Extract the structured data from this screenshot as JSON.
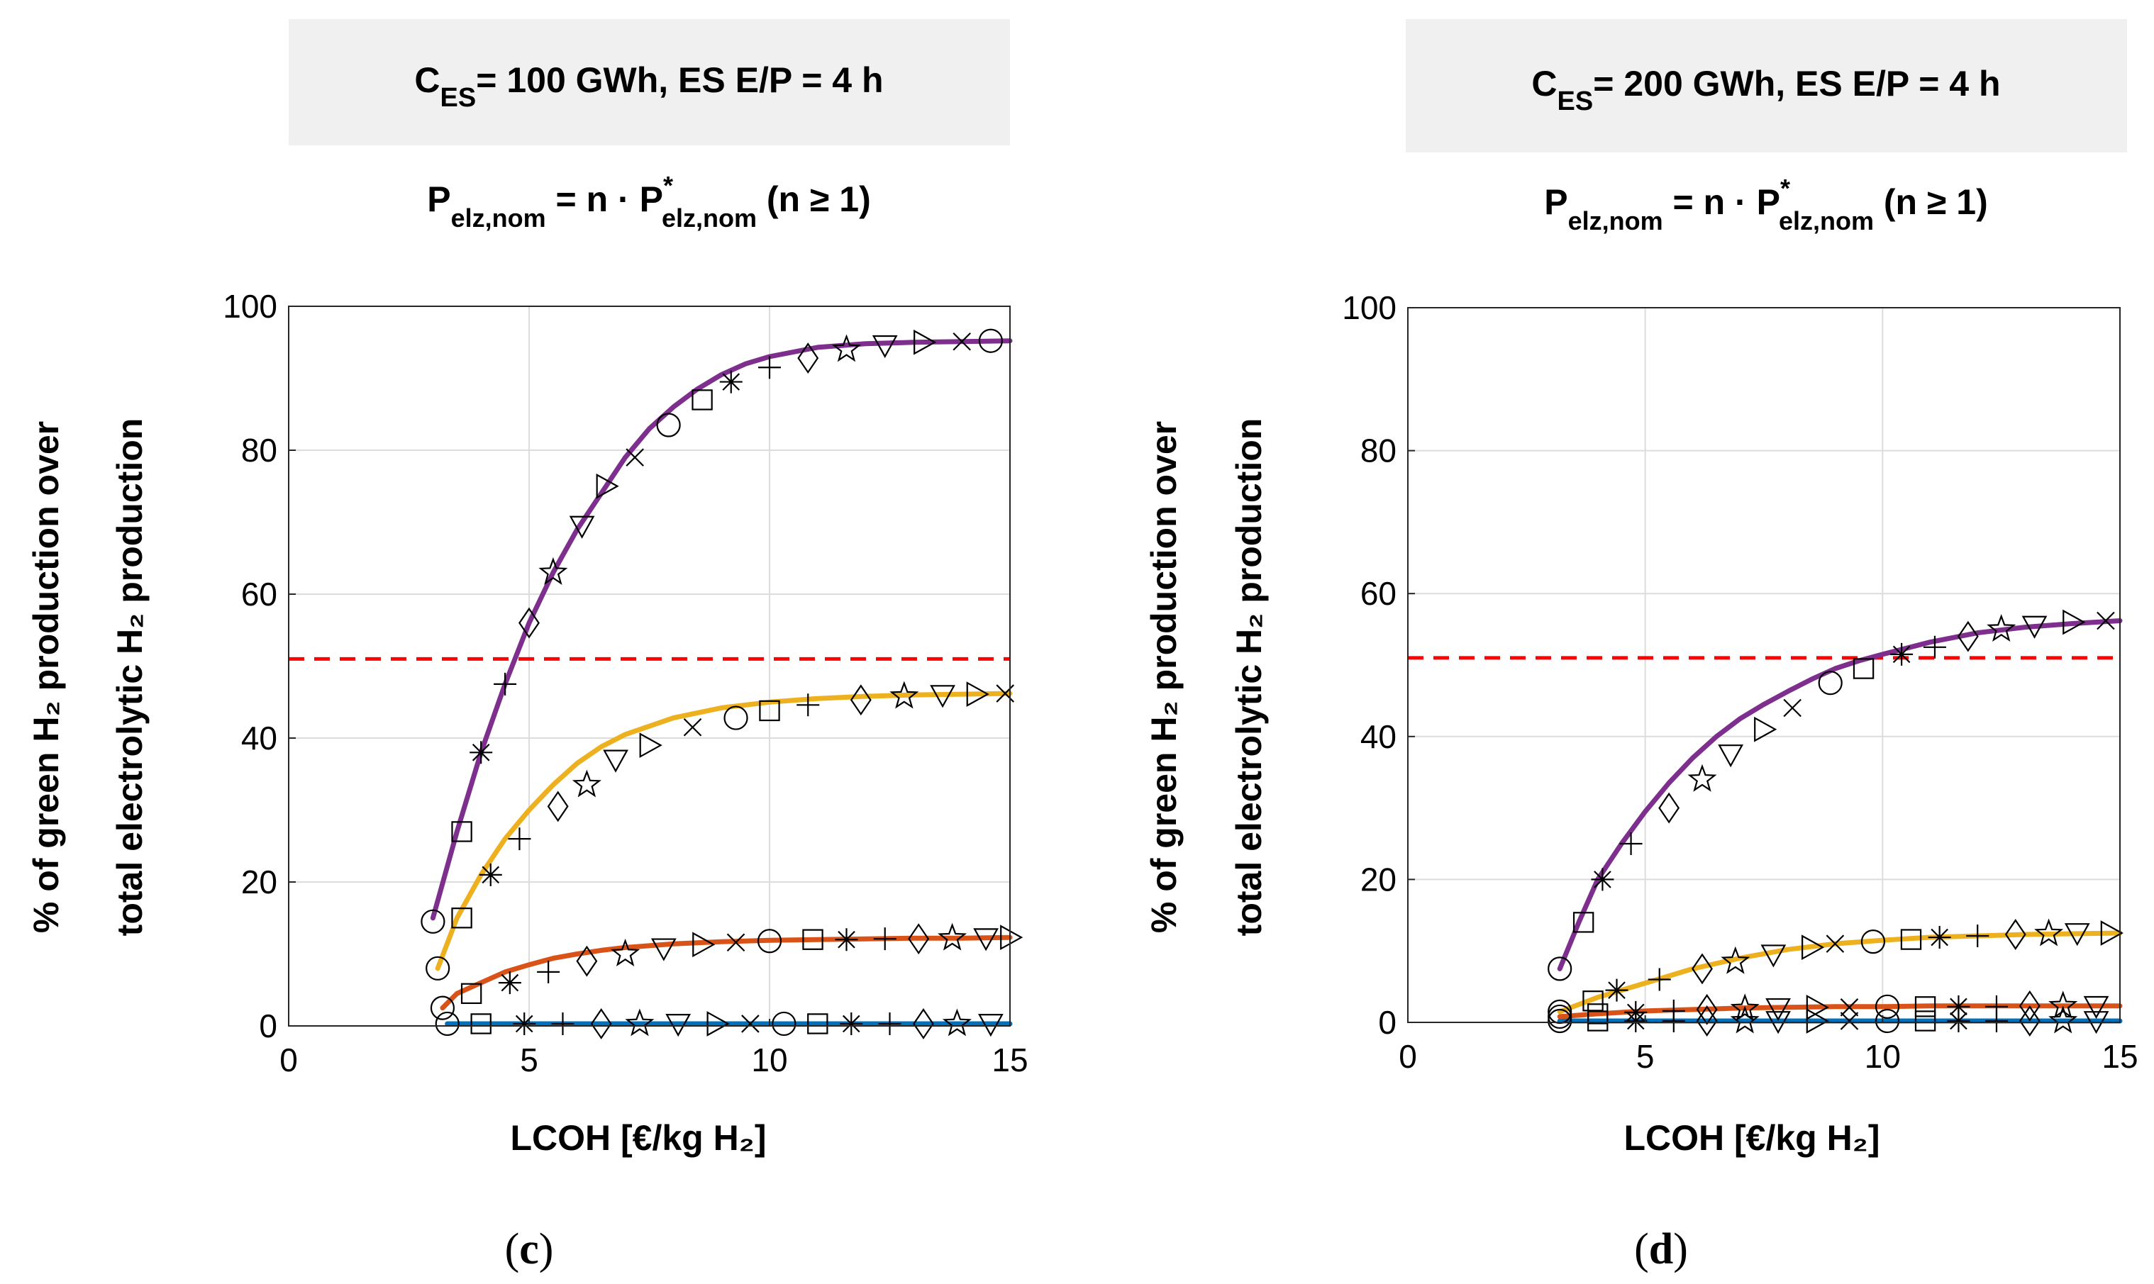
{
  "chart_data": [
    {
      "type": "line",
      "panel_label": "c",
      "header": {
        "main": "C",
        "sub": "ES",
        "rest": "= 100 GWh, ES E/P = 4 h"
      },
      "formula": {
        "lhs": "P",
        "lhs_sub": "elz,nom",
        "mid": " = n · P",
        "star": "*",
        "rhs_sub": "elz,nom",
        "tail": " (n ≥ 1)"
      },
      "xlabel": "LCOH [€/kg H₂]",
      "ylabel_line1": "% of green H₂ production over",
      "ylabel_line2": "total electrolytic H₂ production",
      "xlim": [
        0,
        15
      ],
      "ylim": [
        0,
        100
      ],
      "xticks": [
        0,
        5,
        10,
        15
      ],
      "yticks": [
        0,
        20,
        40,
        60,
        80,
        100
      ],
      "threshold": 51,
      "series": [
        {
          "name": "purple",
          "color": "#7E2F8E",
          "x": [
            3.0,
            3.5,
            4.0,
            4.5,
            5.0,
            5.5,
            6.0,
            6.5,
            7.0,
            7.5,
            8.0,
            8.5,
            9.0,
            9.5,
            10.0,
            11.0,
            12.0,
            13.0,
            14.0,
            15.0
          ],
          "y": [
            15,
            27,
            38,
            47.5,
            56,
            63,
            69,
            74,
            79,
            83,
            86,
            88.5,
            90.5,
            92,
            93,
            94.3,
            94.8,
            95.0,
            95.1,
            95.2
          ]
        },
        {
          "name": "yellow",
          "color": "#EDB120",
          "x": [
            3.1,
            3.5,
            4.0,
            4.5,
            5.0,
            5.5,
            6.0,
            6.5,
            7.0,
            8.0,
            9.0,
            10.0,
            11.0,
            12.0,
            13.0,
            14.0,
            15.0
          ],
          "y": [
            8,
            15,
            21,
            26,
            30,
            33.5,
            36.5,
            38.8,
            40.5,
            42.8,
            44.2,
            45.0,
            45.5,
            45.8,
            46.0,
            46.1,
            46.2
          ]
        },
        {
          "name": "orange",
          "color": "#D95319",
          "x": [
            3.2,
            3.5,
            4.0,
            4.5,
            5.0,
            5.5,
            6.0,
            6.5,
            7.0,
            8.0,
            9.0,
            10.0,
            11.0,
            12.0,
            13.0,
            14.0,
            15.0
          ],
          "y": [
            2.5,
            4.5,
            6,
            7.5,
            8.5,
            9.4,
            10.0,
            10.5,
            10.9,
            11.4,
            11.7,
            11.9,
            12.0,
            12.1,
            12.2,
            12.2,
            12.3
          ]
        },
        {
          "name": "blue",
          "color": "#0072BD",
          "x": [
            3.3,
            4.0,
            5.0,
            6.0,
            7.0,
            8.0,
            9.0,
            10.0,
            11.0,
            12.0,
            13.0,
            14.0,
            15.0
          ],
          "y": [
            0.3,
            0.3,
            0.3,
            0.3,
            0.3,
            0.3,
            0.3,
            0.3,
            0.3,
            0.3,
            0.3,
            0.3,
            0.3
          ]
        }
      ],
      "markers": [
        {
          "series": 0,
          "points": [
            [
              3.0,
              14.5,
              "o"
            ],
            [
              3.6,
              27,
              "s"
            ],
            [
              4.0,
              38,
              "*"
            ],
            [
              4.5,
              47.5,
              "+"
            ],
            [
              5.0,
              56,
              "d"
            ],
            [
              5.5,
              63,
              "p"
            ],
            [
              6.1,
              69.5,
              "v"
            ],
            [
              6.6,
              75,
              ">"
            ],
            [
              7.2,
              79,
              "x"
            ],
            [
              7.9,
              83.5,
              "o"
            ],
            [
              8.6,
              87,
              "s"
            ],
            [
              9.2,
              89.5,
              "*"
            ],
            [
              10.0,
              91.5,
              "+"
            ],
            [
              10.8,
              92.8,
              "d"
            ],
            [
              11.6,
              94,
              "p"
            ],
            [
              12.4,
              94.6,
              "v"
            ],
            [
              13.2,
              95,
              ">"
            ],
            [
              14.0,
              95.1,
              "x"
            ],
            [
              14.6,
              95.2,
              "o"
            ]
          ]
        },
        {
          "series": 1,
          "points": [
            [
              3.1,
              8,
              "o"
            ],
            [
              3.6,
              15,
              "s"
            ],
            [
              4.2,
              21,
              "*"
            ],
            [
              4.8,
              26,
              "+"
            ],
            [
              5.6,
              30.5,
              "d"
            ],
            [
              6.2,
              33.5,
              "p"
            ],
            [
              6.8,
              37,
              "v"
            ],
            [
              7.5,
              39,
              ">"
            ],
            [
              8.4,
              41.5,
              "x"
            ],
            [
              9.3,
              42.8,
              "o"
            ],
            [
              10.0,
              43.8,
              "s"
            ],
            [
              10.8,
              44.6,
              "+"
            ],
            [
              11.9,
              45.3,
              "d"
            ],
            [
              12.8,
              45.8,
              "p"
            ],
            [
              13.6,
              46,
              "v"
            ],
            [
              14.3,
              46.1,
              ">"
            ],
            [
              14.9,
              46.2,
              "x"
            ]
          ]
        },
        {
          "series": 2,
          "points": [
            [
              3.2,
              2.5,
              "o"
            ],
            [
              3.8,
              4.5,
              "s"
            ],
            [
              4.6,
              6,
              "*"
            ],
            [
              5.4,
              7.5,
              "+"
            ],
            [
              6.2,
              9,
              "d"
            ],
            [
              7.0,
              10,
              "p"
            ],
            [
              7.8,
              10.8,
              "v"
            ],
            [
              8.6,
              11.3,
              ">"
            ],
            [
              9.3,
              11.6,
              "x"
            ],
            [
              10.0,
              11.8,
              "o"
            ],
            [
              10.9,
              12,
              "s"
            ],
            [
              11.6,
              12,
              "*"
            ],
            [
              12.4,
              12.1,
              "+"
            ],
            [
              13.1,
              12.1,
              "d"
            ],
            [
              13.8,
              12.2,
              "p"
            ],
            [
              14.5,
              12.2,
              "v"
            ],
            [
              15.0,
              12.3,
              ">"
            ]
          ]
        },
        {
          "series": 3,
          "points": [
            [
              3.3,
              0.3,
              "o"
            ],
            [
              4.0,
              0.3,
              "s"
            ],
            [
              4.9,
              0.3,
              "*"
            ],
            [
              5.7,
              0.3,
              "+"
            ],
            [
              6.5,
              0.3,
              "d"
            ],
            [
              7.3,
              0.3,
              "p"
            ],
            [
              8.1,
              0.3,
              "v"
            ],
            [
              8.9,
              0.3,
              ">"
            ],
            [
              9.6,
              0.3,
              "x"
            ],
            [
              10.3,
              0.3,
              "o"
            ],
            [
              11.0,
              0.3,
              "s"
            ],
            [
              11.7,
              0.3,
              "*"
            ],
            [
              12.5,
              0.3,
              "+"
            ],
            [
              13.2,
              0.3,
              "d"
            ],
            [
              13.9,
              0.3,
              "p"
            ],
            [
              14.6,
              0.3,
              "v"
            ]
          ]
        }
      ]
    },
    {
      "type": "line",
      "panel_label": "d",
      "header": {
        "main": "C",
        "sub": "ES",
        "rest": "= 200 GWh, ES E/P = 4 h"
      },
      "formula": {
        "lhs": "P",
        "lhs_sub": "elz,nom",
        "mid": " = n · P",
        "star": "*",
        "rhs_sub": "elz,nom",
        "tail": " (n ≥ 1)"
      },
      "xlabel": "LCOH [€/kg H₂]",
      "ylabel_line1": "% of green H₂ production over",
      "ylabel_line2": "total electrolytic H₂ production",
      "xlim": [
        0,
        15
      ],
      "ylim": [
        0,
        100
      ],
      "xticks": [
        0,
        5,
        10,
        15
      ],
      "yticks": [
        0,
        20,
        40,
        60,
        80,
        100
      ],
      "threshold": 51,
      "series": [
        {
          "name": "purple",
          "color": "#7E2F8E",
          "x": [
            3.2,
            3.6,
            4.0,
            4.5,
            5.0,
            5.5,
            6.0,
            6.5,
            7.0,
            7.5,
            8.0,
            8.5,
            9.0,
            9.5,
            10.0,
            11.0,
            12.0,
            13.0,
            14.0,
            15.0
          ],
          "y": [
            7.5,
            14,
            20,
            25,
            29.5,
            33.5,
            37,
            40,
            42.5,
            44.5,
            46.3,
            48,
            49.5,
            50.6,
            51.5,
            53.2,
            54.5,
            55.3,
            55.8,
            56.2
          ]
        },
        {
          "name": "yellow",
          "color": "#EDB120",
          "x": [
            3.2,
            4.0,
            5.0,
            6.0,
            7.0,
            8.0,
            9.0,
            10.0,
            11.0,
            12.0,
            13.0,
            14.0,
            15.0
          ],
          "y": [
            1.5,
            3.5,
            5.5,
            7.5,
            9,
            10.2,
            11.0,
            11.5,
            11.9,
            12.1,
            12.3,
            12.4,
            12.5
          ]
        },
        {
          "name": "orange",
          "color": "#D95319",
          "x": [
            3.2,
            4.0,
            5.0,
            6.0,
            7.0,
            8.0,
            9.0,
            10.0,
            11.0,
            12.0,
            13.0,
            14.0,
            15.0
          ],
          "y": [
            0.8,
            1.2,
            1.6,
            1.8,
            2.0,
            2.1,
            2.2,
            2.2,
            2.3,
            2.3,
            2.3,
            2.3,
            2.3
          ]
        },
        {
          "name": "blue",
          "color": "#0072BD",
          "x": [
            3.2,
            4.0,
            5.0,
            6.0,
            7.0,
            8.0,
            9.0,
            10.0,
            11.0,
            12.0,
            13.0,
            14.0,
            15.0
          ],
          "y": [
            0.2,
            0.2,
            0.2,
            0.2,
            0.2,
            0.2,
            0.2,
            0.2,
            0.2,
            0.2,
            0.2,
            0.2,
            0.2
          ]
        }
      ],
      "markers": [
        {
          "series": 0,
          "points": [
            [
              3.2,
              7.5,
              "o"
            ],
            [
              3.7,
              14,
              "s"
            ],
            [
              4.1,
              20,
              "*"
            ],
            [
              4.7,
              25,
              "+"
            ],
            [
              5.5,
              30,
              "d"
            ],
            [
              6.2,
              34,
              "p"
            ],
            [
              6.8,
              37.5,
              "v"
            ],
            [
              7.5,
              41,
              ">"
            ],
            [
              8.1,
              44,
              "x"
            ],
            [
              8.9,
              47.5,
              "o"
            ],
            [
              9.6,
              49.5,
              "s"
            ],
            [
              10.4,
              51.5,
              "*"
            ],
            [
              11.1,
              52.5,
              "+"
            ],
            [
              11.8,
              54,
              "d"
            ],
            [
              12.5,
              55,
              "p"
            ],
            [
              13.2,
              55.5,
              "v"
            ],
            [
              14.0,
              56,
              ">"
            ],
            [
              14.7,
              56.2,
              "x"
            ]
          ]
        },
        {
          "series": 1,
          "points": [
            [
              3.2,
              1.5,
              "o"
            ],
            [
              3.9,
              3,
              "s"
            ],
            [
              4.4,
              4.5,
              "*"
            ],
            [
              5.3,
              6,
              "+"
            ],
            [
              6.2,
              7.5,
              "d"
            ],
            [
              6.9,
              8.5,
              "p"
            ],
            [
              7.7,
              9.5,
              "v"
            ],
            [
              8.5,
              10.5,
              ">"
            ],
            [
              9.0,
              11,
              "x"
            ],
            [
              9.8,
              11.3,
              "o"
            ],
            [
              10.6,
              11.6,
              "s"
            ],
            [
              11.2,
              11.9,
              "*"
            ],
            [
              12.0,
              12.1,
              "+"
            ],
            [
              12.8,
              12.3,
              "d"
            ],
            [
              13.5,
              12.4,
              "p"
            ],
            [
              14.1,
              12.5,
              "v"
            ],
            [
              14.8,
              12.5,
              ">"
            ]
          ]
        },
        {
          "series": 2,
          "points": [
            [
              3.2,
              0.8,
              "o"
            ],
            [
              4.0,
              1.2,
              "s"
            ],
            [
              4.8,
              1.4,
              "*"
            ],
            [
              5.6,
              1.6,
              "+"
            ],
            [
              6.3,
              1.8,
              "d"
            ],
            [
              7.1,
              1.9,
              "p"
            ],
            [
              7.8,
              2.0,
              "v"
            ],
            [
              8.6,
              2.1,
              ">"
            ],
            [
              9.3,
              2.1,
              "x"
            ],
            [
              10.1,
              2.2,
              "o"
            ],
            [
              10.9,
              2.2,
              "s"
            ],
            [
              11.6,
              2.2,
              "*"
            ],
            [
              12.4,
              2.2,
              "+"
            ],
            [
              13.1,
              2.3,
              "d"
            ],
            [
              13.8,
              2.3,
              "p"
            ],
            [
              14.5,
              2.3,
              "v"
            ]
          ]
        },
        {
          "series": 3,
          "points": [
            [
              3.2,
              0.2,
              "o"
            ],
            [
              4.0,
              0.2,
              "s"
            ],
            [
              4.8,
              0.2,
              "*"
            ],
            [
              5.6,
              0.2,
              "+"
            ],
            [
              6.3,
              0.2,
              "d"
            ],
            [
              7.1,
              0.2,
              "p"
            ],
            [
              7.8,
              0.2,
              "v"
            ],
            [
              8.6,
              0.2,
              ">"
            ],
            [
              9.3,
              0.2,
              "x"
            ],
            [
              10.1,
              0.2,
              "o"
            ],
            [
              10.9,
              0.2,
              "s"
            ],
            [
              11.6,
              0.2,
              "*"
            ],
            [
              12.4,
              0.2,
              "+"
            ],
            [
              13.1,
              0.2,
              "d"
            ],
            [
              13.8,
              0.2,
              "p"
            ],
            [
              14.5,
              0.2,
              "v"
            ]
          ]
        }
      ]
    }
  ]
}
